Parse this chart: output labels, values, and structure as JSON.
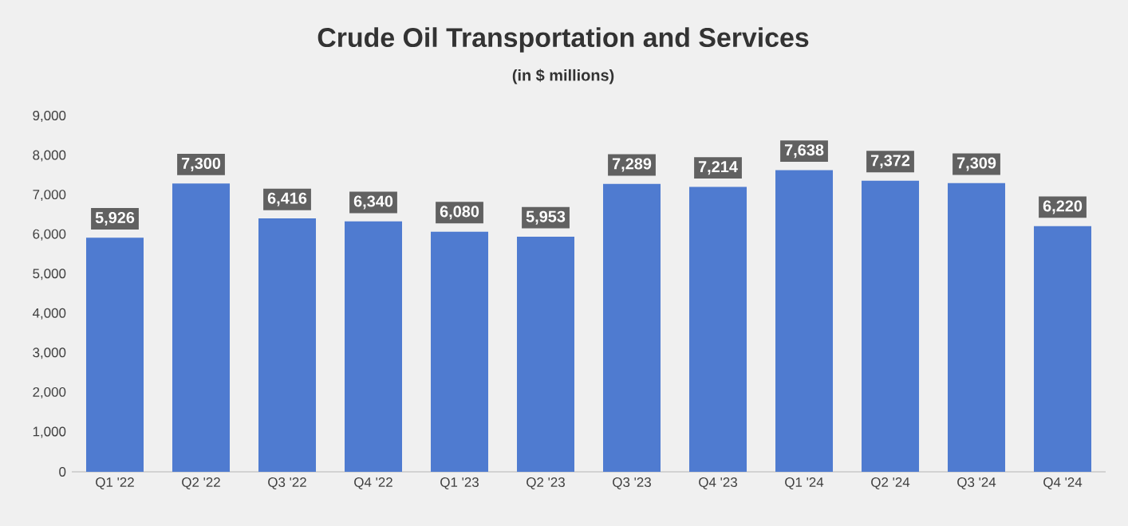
{
  "chart_data": {
    "type": "bar",
    "title": "Crude Oil Transportation and Services",
    "subtitle": "(in $ millions)",
    "categories": [
      "Q1 '22",
      "Q2 '22",
      "Q3 '22",
      "Q4 '22",
      "Q1 '23",
      "Q2 '23",
      "Q3 '23",
      "Q4 '23",
      "Q1 '24",
      "Q2 '24",
      "Q3 '24",
      "Q4 '24"
    ],
    "values": [
      5926,
      7300,
      6416,
      6340,
      6080,
      5953,
      7289,
      7214,
      7638,
      7372,
      7309,
      6220
    ],
    "value_labels": [
      "5,926",
      "7,300",
      "6,416",
      "6,340",
      "6,080",
      "5,953",
      "7,289",
      "7,214",
      "7,638",
      "7,372",
      "7,309",
      "6,220"
    ],
    "color": "#4f7bd0",
    "ylim": [
      0,
      9000
    ],
    "yticks": [
      {
        "value": 0,
        "label": "0"
      },
      {
        "value": 1000,
        "label": "1,000"
      },
      {
        "value": 2000,
        "label": "2,000"
      },
      {
        "value": 3000,
        "label": "3,000"
      },
      {
        "value": 4000,
        "label": "4,000"
      },
      {
        "value": 5000,
        "label": "5,000"
      },
      {
        "value": 6000,
        "label": "6,000"
      },
      {
        "value": 7000,
        "label": "7,000"
      },
      {
        "value": 8000,
        "label": "8,000"
      },
      {
        "value": 9000,
        "label": "9,000"
      }
    ]
  }
}
